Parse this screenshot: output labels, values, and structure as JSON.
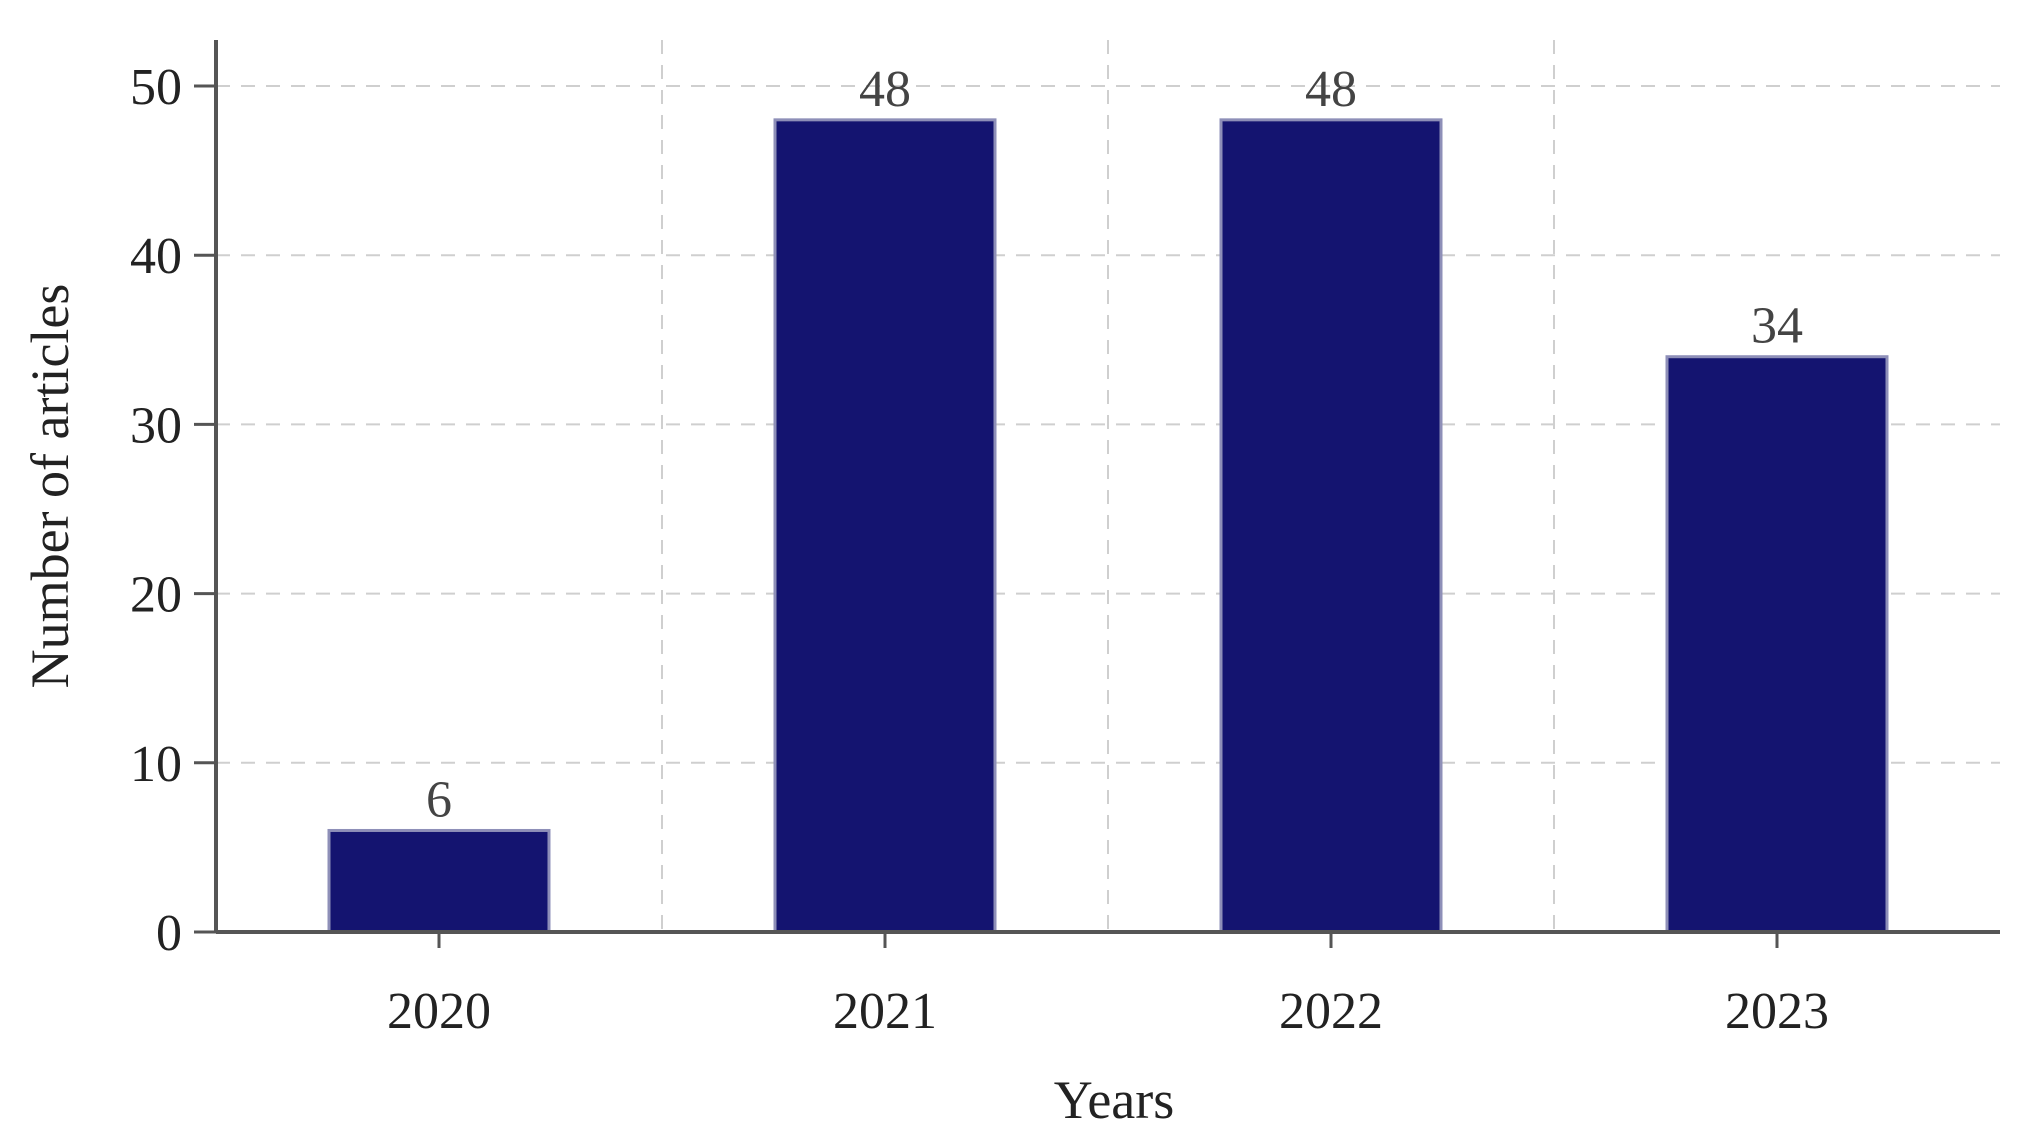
{
  "chart_data": {
    "type": "bar",
    "categories": [
      "2020",
      "2021",
      "2022",
      "2023"
    ],
    "values": [
      6,
      48,
      48,
      34
    ],
    "data_labels": [
      "6",
      "48",
      "48",
      "34"
    ],
    "title": "",
    "xlabel": "Years",
    "ylabel": "Number of articles",
    "ylim": [
      0,
      52
    ],
    "yticks": [
      0,
      10,
      20,
      30,
      40,
      50
    ],
    "ytick_labels": [
      "0",
      "10",
      "20",
      "30",
      "40",
      "50"
    ],
    "grid": true,
    "bar_color": "#141470",
    "bar_edge_color": "#8e8fb8",
    "axis_color": "#555555",
    "grid_color": "#cfcfcf"
  }
}
